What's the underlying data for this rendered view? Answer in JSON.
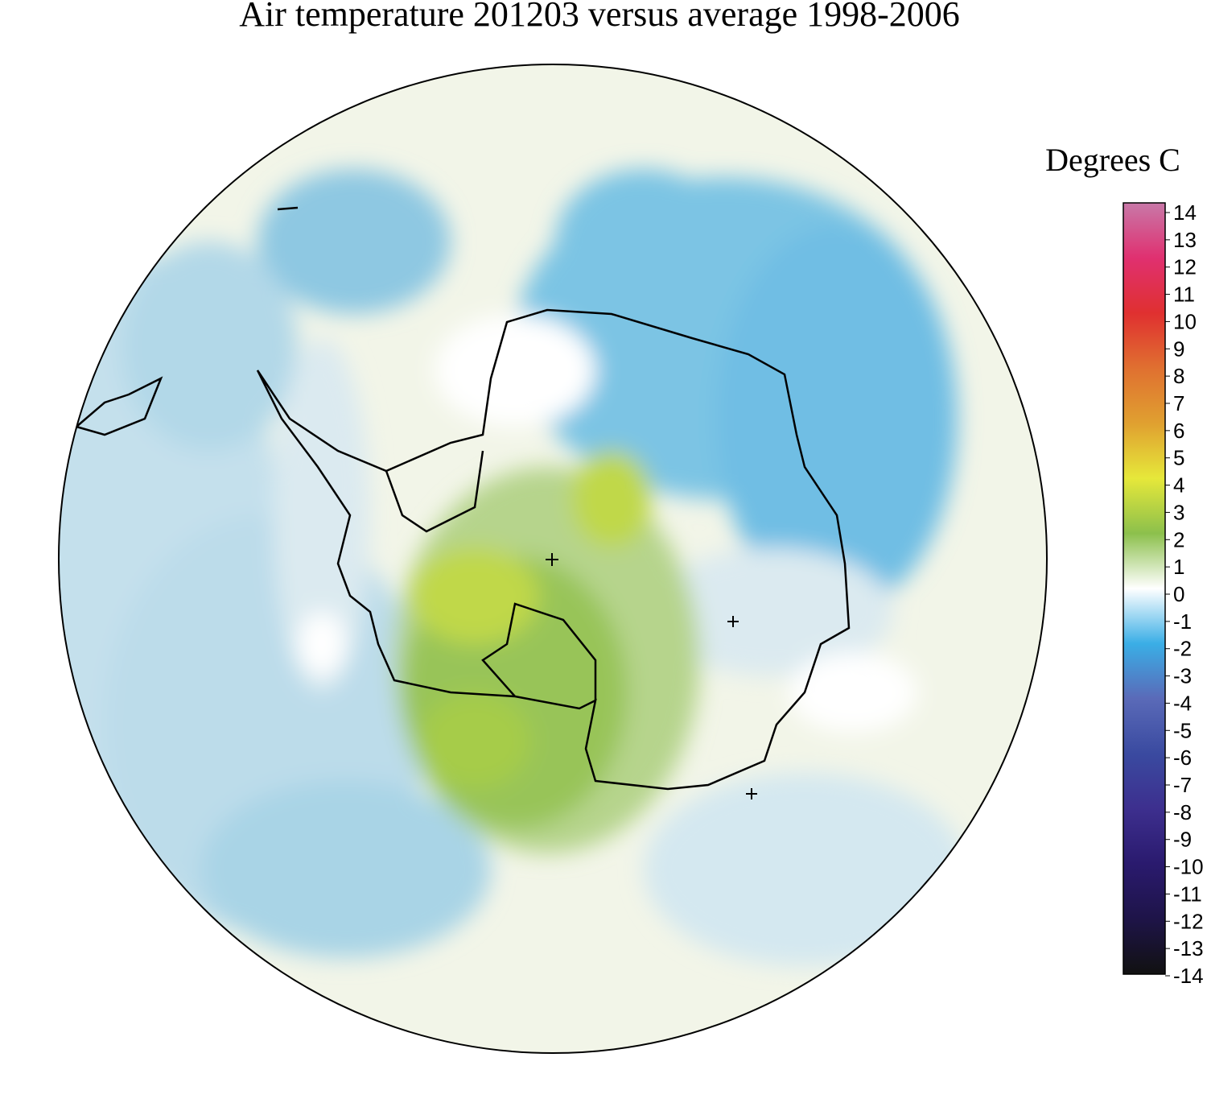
{
  "title": "Air temperature 201203 versus average 1998-2006",
  "colorbar": {
    "label": "Degrees C",
    "lim": [
      -14,
      14
    ],
    "ticks": [
      14,
      13,
      12,
      11,
      10,
      9,
      8,
      7,
      6,
      5,
      4,
      3,
      2,
      1,
      0,
      -1,
      -2,
      -3,
      -4,
      -5,
      -6,
      -7,
      -8,
      -9,
      -10,
      -11,
      -12,
      -13,
      -14
    ],
    "colors": [
      "#111111",
      "#1e1448",
      "#2a1a6e",
      "#3d2f8e",
      "#3a4aa0",
      "#5a6ab8",
      "#3aaee6",
      "#ffffff",
      "#8cc04c",
      "#e6e83a",
      "#e0a030",
      "#e07030",
      "#e03030",
      "#e03070",
      "#c878a8"
    ]
  }
}
